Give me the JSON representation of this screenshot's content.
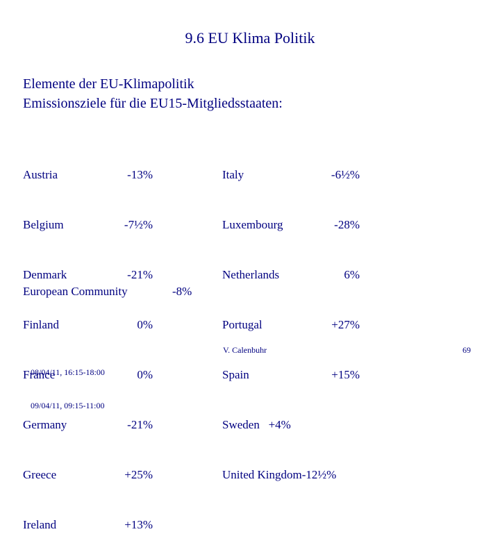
{
  "title": "9.6 EU Klima Politik",
  "subtitle": {
    "line1": "Elemente der EU-Klimapolitik",
    "line2": "Emissionsziele für die EU15-Mitgliedsstaaten:"
  },
  "left_countries": [
    {
      "name": "Austria",
      "value": "-13%"
    },
    {
      "name": "Belgium",
      "value": "-7½%"
    },
    {
      "name": "Denmark",
      "value": "-21%"
    },
    {
      "name": "Finland",
      "value": "0%"
    },
    {
      "name": "France",
      "value": "0%"
    },
    {
      "name": "Germany",
      "value": "-21%"
    },
    {
      "name": "Greece",
      "value": "+25%"
    },
    {
      "name": "Ireland",
      "value": "+13%"
    }
  ],
  "right_countries": [
    {
      "name": "Italy",
      "value": "-6½%"
    },
    {
      "name": "Luxembourg",
      "value": "-28%"
    },
    {
      "name": "Netherlands",
      "value": "6%"
    },
    {
      "name": "Portugal",
      "value": "+27%"
    },
    {
      "name": "Spain",
      "value": "+15%"
    },
    {
      "name": "Sweden",
      "value": "+4%"
    },
    {
      "name": "United Kingdom",
      "value": "-12½%"
    }
  ],
  "community": {
    "name": "European Community",
    "value": "-8%"
  },
  "footer": {
    "date1": "08/04/11, 16:15-18:00",
    "date2": "09/04/11, 09:15-11:00",
    "author": "V. Calenbuhr",
    "page": "69"
  }
}
